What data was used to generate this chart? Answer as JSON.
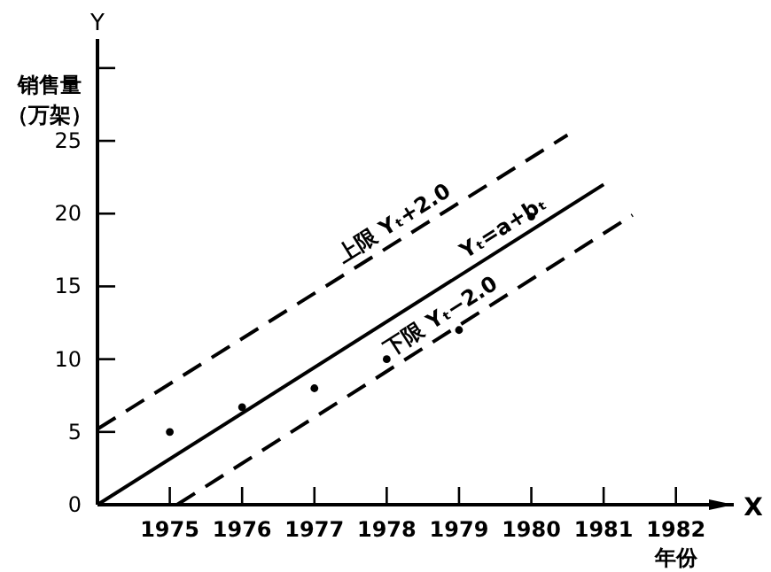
{
  "chart_data": {
    "type": "line",
    "ylabel": "销售量（万架）",
    "xlabel": "年份",
    "xlim": [
      1974,
      1982.8
    ],
    "ylim": [
      0,
      32
    ],
    "xticks": [
      1975,
      1976,
      1977,
      1978,
      1979,
      1980,
      1981,
      1982
    ],
    "yticks": [
      0,
      5,
      10,
      15,
      20,
      25,
      {
        "value": 30,
        "label": null
      }
    ],
    "grid": false,
    "annotations": [
      "Y",
      "X"
    ],
    "series": [
      {
        "name": "上限 Yₜ+2.0",
        "type": "line",
        "line_style": "dashed",
        "color": "#000000",
        "x": [
          1974,
          1980.5
        ],
        "values": [
          5.2,
          25.4
        ]
      },
      {
        "name": "Yₜ=a+bₜ",
        "type": "line",
        "line_style": "solid",
        "color": "#000000",
        "x": [
          1974,
          1981
        ],
        "values": [
          0,
          22
        ]
      },
      {
        "name": "下限 Yₜ−2.0",
        "type": "line",
        "line_style": "dashed",
        "color": "#000000",
        "x": [
          1975.1,
          1981.4
        ],
        "values": [
          0,
          19.9
        ]
      },
      {
        "type": "scatter",
        "marker": "circle",
        "color": "#000000",
        "x": [
          1975,
          1976,
          1977,
          1978,
          1979,
          1980
        ],
        "values": [
          5,
          6.7,
          8,
          10,
          12,
          19.8
        ]
      }
    ]
  }
}
